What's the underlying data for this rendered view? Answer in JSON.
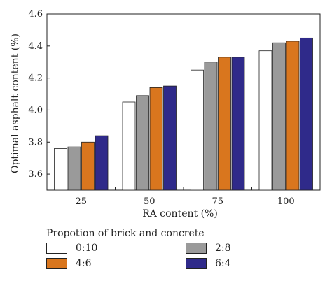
{
  "chart_data": {
    "type": "bar",
    "categories": [
      "25",
      "50",
      "75",
      "100"
    ],
    "series": [
      {
        "name": "0:10",
        "color": "#ffffff",
        "values": [
          3.76,
          4.05,
          4.25,
          4.37
        ]
      },
      {
        "name": "2:8",
        "color": "#9a9a9a",
        "values": [
          3.77,
          4.09,
          4.3,
          4.42
        ]
      },
      {
        "name": "4:6",
        "color": "#d9761e",
        "values": [
          3.8,
          4.14,
          4.33,
          4.43
        ]
      },
      {
        "name": "6:4",
        "color": "#2f2a8a",
        "values": [
          3.84,
          4.15,
          4.33,
          4.45
        ]
      }
    ],
    "xlabel": "RA content (%)",
    "ylabel": "Optimal asphalt content (%)",
    "ylim": [
      3.5,
      4.6
    ],
    "yticks": [
      "3.6",
      "3.8",
      "4.0",
      "4.2",
      "4.4",
      "4.6"
    ],
    "grid": false,
    "legend": {
      "title": "Propotion of brick and concrete",
      "placement": "below",
      "items": [
        "0:10",
        "2:8",
        "4:6",
        "6:4"
      ]
    }
  }
}
